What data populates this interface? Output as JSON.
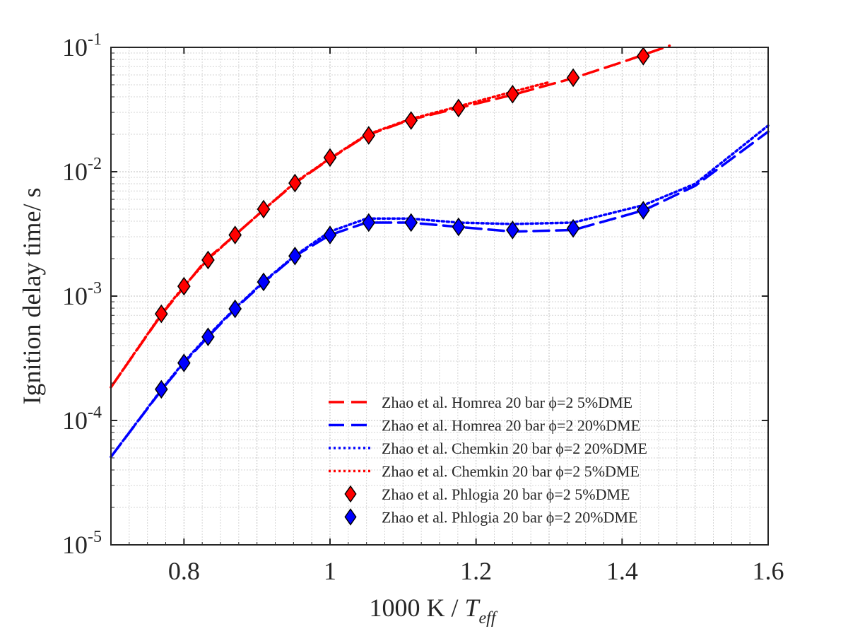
{
  "chart_data": {
    "type": "line",
    "title": "",
    "xlabel": {
      "main": "1000 K / ",
      "italic": "T",
      "subscript": "eff"
    },
    "ylabel": "Ignition delay time/ s",
    "xlim": [
      0.7,
      1.6
    ],
    "ylim": [
      1e-05,
      0.1
    ],
    "yscale": "log",
    "grid": true,
    "minor_grid": true,
    "legend_position": "bottom-right",
    "x_ticks": [
      {
        "value": 0.8,
        "label": "0.8"
      },
      {
        "value": 1.0,
        "label": "1"
      },
      {
        "value": 1.2,
        "label": "1.2"
      },
      {
        "value": 1.4,
        "label": "1.4"
      },
      {
        "value": 1.6,
        "label": "1.6"
      }
    ],
    "y_ticks": [
      {
        "value": 1e-05,
        "base": "10",
        "exp": "-5"
      },
      {
        "value": 0.0001,
        "base": "10",
        "exp": "-4"
      },
      {
        "value": 0.001,
        "base": "10",
        "exp": "-3"
      },
      {
        "value": 0.01,
        "base": "10",
        "exp": "-2"
      },
      {
        "value": 0.1,
        "base": "10",
        "exp": "-1"
      }
    ],
    "series": [
      {
        "name": "Zhao et al. Homrea 20 bar ϕ=2 5%DME",
        "style": "dashed",
        "color": "#ff0000",
        "marker": "none",
        "x": [
          0.7,
          0.77,
          0.8,
          0.83,
          0.87,
          0.91,
          0.952,
          1.0,
          1.05,
          1.11,
          1.176,
          1.25,
          1.333,
          1.4,
          1.465
        ],
        "y": [
          0.000185,
          0.00072,
          0.00118,
          0.00195,
          0.0031,
          0.005,
          0.0081,
          0.0127,
          0.0196,
          0.0262,
          0.0325,
          0.0415,
          0.0565,
          0.076,
          0.103
        ]
      },
      {
        "name": "Zhao et al. Homrea 20 bar ϕ=2 20%DME",
        "style": "dashed",
        "color": "#0000ff",
        "marker": "none",
        "x": [
          0.7,
          0.77,
          0.8,
          0.833,
          0.87,
          0.91,
          0.952,
          1.0,
          1.05,
          1.11,
          1.176,
          1.25,
          1.333,
          1.43,
          1.5,
          1.6
        ],
        "y": [
          5.1e-05,
          0.000178,
          0.00029,
          0.00047,
          0.00079,
          0.0013,
          0.0021,
          0.0031,
          0.0039,
          0.0039,
          0.0036,
          0.0033,
          0.0034,
          0.0049,
          0.0077,
          0.021
        ]
      },
      {
        "name": "Zhao et al. Chemkin 20 bar ϕ=2 20%DME",
        "style": "dotted",
        "color": "#0000ff",
        "marker": "none",
        "x": [
          0.7,
          0.77,
          0.8,
          0.833,
          0.87,
          0.91,
          0.952,
          1.0,
          1.05,
          1.11,
          1.176,
          1.25,
          1.333,
          1.43,
          1.5,
          1.6
        ],
        "y": [
          5.1e-05,
          0.00018,
          0.000295,
          0.00048,
          0.0008,
          0.00132,
          0.00212,
          0.0033,
          0.0042,
          0.0042,
          0.0039,
          0.0038,
          0.0039,
          0.0054,
          0.008,
          0.0235
        ]
      },
      {
        "name": "Zhao et al. Chemkin 20 bar ϕ=2 5%DME",
        "style": "dotted",
        "color": "#ff0000",
        "marker": "none",
        "x": [
          0.7,
          0.77,
          0.8,
          0.833,
          0.87,
          0.91,
          0.952,
          1.0,
          1.05,
          1.11,
          1.176,
          1.25,
          1.3
        ],
        "y": [
          0.000185,
          0.00073,
          0.0012,
          0.00198,
          0.0031,
          0.005,
          0.0082,
          0.0128,
          0.0198,
          0.0265,
          0.0335,
          0.044,
          0.0525
        ]
      },
      {
        "name": "Zhao et al. Phlogia 20 bar ϕ=2 5%DME",
        "style": "none",
        "color": "#ff0000",
        "marker": "diamond",
        "x": [
          0.769,
          0.8,
          0.833,
          0.87,
          0.909,
          0.952,
          1.0,
          1.053,
          1.111,
          1.176,
          1.25,
          1.333,
          1.429
        ],
        "y": [
          0.00072,
          0.0012,
          0.00195,
          0.0031,
          0.005,
          0.0081,
          0.013,
          0.0196,
          0.0258,
          0.0325,
          0.042,
          0.057,
          0.085
        ]
      },
      {
        "name": "Zhao et al. Phlogia 20 bar ϕ=2 20%DME",
        "style": "none",
        "color": "#0000ff",
        "marker": "diamond",
        "x": [
          0.769,
          0.8,
          0.833,
          0.87,
          0.909,
          0.952,
          1.0,
          1.053,
          1.111,
          1.176,
          1.25,
          1.333,
          1.429
        ],
        "y": [
          0.000178,
          0.00029,
          0.00047,
          0.00079,
          0.0013,
          0.0021,
          0.0031,
          0.0039,
          0.0039,
          0.0036,
          0.0034,
          0.0035,
          0.0049
        ]
      }
    ]
  }
}
